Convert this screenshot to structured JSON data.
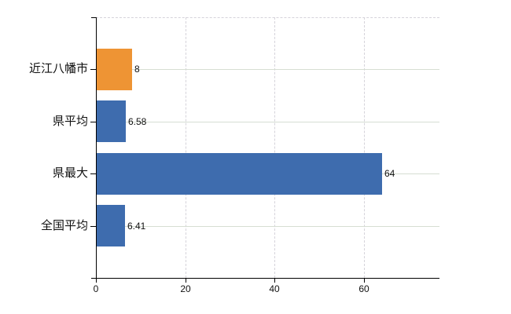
{
  "chart_data": {
    "type": "bar",
    "orientation": "horizontal",
    "title": "",
    "xlabel": "",
    "ylabel": "",
    "categories": [
      "近江八幡市",
      "県平均",
      "県最大",
      "全国平均"
    ],
    "values": [
      8,
      6.58,
      64,
      6.41
    ],
    "value_labels": [
      "8",
      "6.58",
      "64",
      "6.41"
    ],
    "bar_colors": [
      "#ee9434",
      "#3e6cae",
      "#3e6cae",
      "#3e6cae"
    ],
    "x_ticks": [
      0,
      20,
      40,
      60
    ],
    "x_tick_labels": [
      "0",
      "20",
      "40",
      "60"
    ],
    "xlim": [
      0,
      77
    ],
    "legend": "none",
    "grid": {
      "horizontal": "solid",
      "horizontal_color": "#d6ded3",
      "vertical": "dashed",
      "vertical_color": "#d5d3da",
      "top_border": "dashed"
    },
    "axis_color": "#000000",
    "background_color": "#ffffff"
  }
}
